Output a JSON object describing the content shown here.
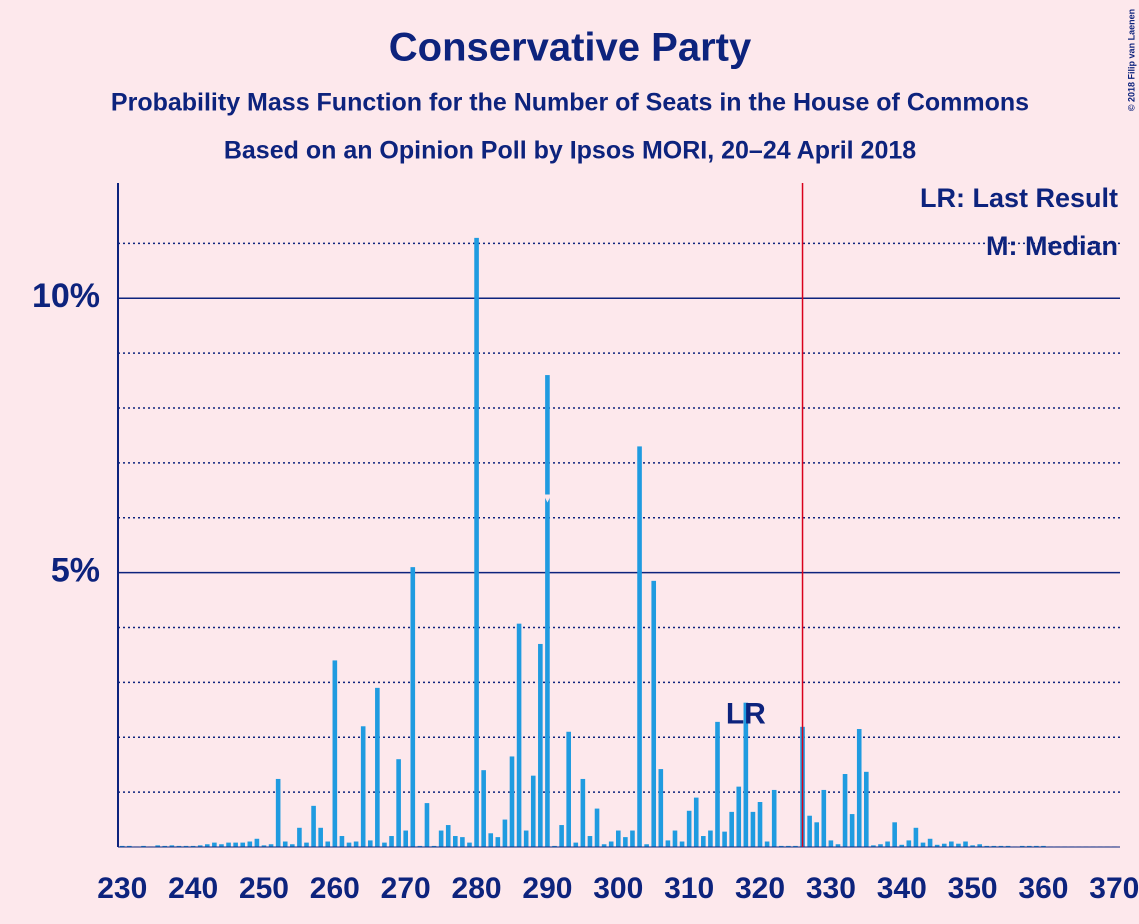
{
  "chart_data": {
    "type": "bar",
    "title": "Conservative Party",
    "subtitle": "Probability Mass Function for the Number of Seats in the House of Commons",
    "subtitle2": "Based on an Opinion Poll by Ipsos MORI, 20–24 April 2018",
    "copyright": "© 2018 Filip van Laenen",
    "legend_lr": "LR: Last Result",
    "legend_median": "M: Median",
    "last_result_label": "LR",
    "last_result": 318,
    "median": 290,
    "majority": 326,
    "color": "#1f9be0",
    "x": [
      230,
      231,
      232,
      233,
      234,
      235,
      236,
      237,
      238,
      239,
      240,
      241,
      242,
      243,
      244,
      245,
      246,
      247,
      248,
      249,
      250,
      251,
      252,
      253,
      254,
      255,
      256,
      257,
      258,
      259,
      260,
      261,
      262,
      263,
      264,
      265,
      266,
      267,
      268,
      269,
      270,
      271,
      272,
      273,
      274,
      275,
      276,
      277,
      278,
      279,
      280,
      281,
      282,
      283,
      284,
      285,
      286,
      287,
      288,
      289,
      290,
      291,
      292,
      293,
      294,
      295,
      296,
      297,
      298,
      299,
      300,
      301,
      302,
      303,
      304,
      305,
      306,
      307,
      308,
      309,
      310,
      311,
      312,
      313,
      314,
      315,
      316,
      317,
      318,
      319,
      320,
      321,
      322,
      323,
      324,
      325,
      326,
      327,
      328,
      329,
      330,
      331,
      332,
      333,
      334,
      335,
      336,
      337,
      338,
      339,
      340,
      341,
      342,
      343,
      344,
      345,
      346,
      347,
      348,
      349,
      350,
      351,
      352,
      353,
      354,
      355,
      356,
      357,
      358,
      359,
      360,
      361,
      362,
      363,
      364,
      365,
      366,
      367,
      368,
      369,
      370
    ],
    "values": [
      0.02,
      0.02,
      0.01,
      0.02,
      0.01,
      0.03,
      0.02,
      0.03,
      0.02,
      0.02,
      0.02,
      0.03,
      0.05,
      0.08,
      0.05,
      0.08,
      0.08,
      0.08,
      0.1,
      0.15,
      0.03,
      0.05,
      1.24,
      0.1,
      0.05,
      0.35,
      0.08,
      0.75,
      0.35,
      0.1,
      3.4,
      0.2,
      0.08,
      0.1,
      2.2,
      0.12,
      2.9,
      0.08,
      0.2,
      1.6,
      0.3,
      5.1,
      0.02,
      0.8,
      0.02,
      0.3,
      0.4,
      0.2,
      0.18,
      0.08,
      11.1,
      1.4,
      0.25,
      0.18,
      0.5,
      1.65,
      4.07,
      0.3,
      1.3,
      3.7,
      8.6,
      0.02,
      0.4,
      2.1,
      0.08,
      1.24,
      0.2,
      0.7,
      0.05,
      0.1,
      0.3,
      0.18,
      0.3,
      7.3,
      0.05,
      4.85,
      1.42,
      0.12,
      0.3,
      0.1,
      0.66,
      0.9,
      0.2,
      0.3,
      2.28,
      0.28,
      0.64,
      1.1,
      2.63,
      0.64,
      0.82,
      0.1,
      1.04,
      0.02,
      0.02,
      0.02,
      2.19,
      0.57,
      0.45,
      1.04,
      0.12,
      0.05,
      1.33,
      0.6,
      2.15,
      1.37,
      0.03,
      0.05,
      0.1,
      0.45,
      0.04,
      0.12,
      0.35,
      0.08,
      0.15,
      0.04,
      0.06,
      0.1,
      0.06,
      0.1,
      0.03,
      0.05,
      0.02,
      0.02,
      0.02,
      0.02,
      0.01,
      0.02,
      0.02,
      0.02,
      0.02,
      0.01,
      0.01,
      0.01,
      0.01,
      0.01,
      0.01,
      0.01,
      0.01,
      0.01,
      0.01
    ],
    "xlim": [
      229.4,
      370.8
    ],
    "xticks": [
      230,
      240,
      250,
      260,
      270,
      280,
      290,
      300,
      310,
      320,
      330,
      340,
      350,
      360,
      370
    ],
    "ylim": [
      0,
      12.1
    ],
    "yticks": [
      {
        "value": 5,
        "label": "5%"
      },
      {
        "value": 10,
        "label": "10%"
      }
    ],
    "minor_yticks": [
      1,
      2,
      3,
      4,
      6,
      7,
      8,
      9,
      11
    ],
    "grid": true
  }
}
